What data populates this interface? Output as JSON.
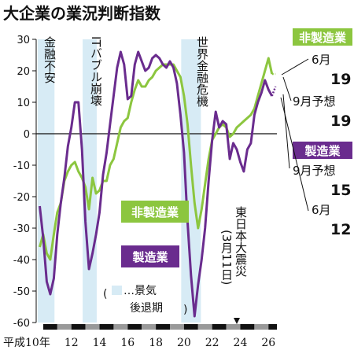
{
  "title": "大企業の業況判断指数",
  "colors": {
    "nonmfg": "#8cc63f",
    "mfg": "#6a2c8e",
    "recession": "#d7ebf5",
    "axis": "#111111",
    "stripe_gray": "#999999"
  },
  "recession_labels": [
    "金融不安",
    "ITバブル崩壊",
    "世界金融危機"
  ],
  "earthquake_label": "東日本大震災",
  "earthquake_date": "(3月11日)",
  "legend_text": "…景気後退期",
  "series_labels": {
    "nonmfg": "非製造業",
    "mfg": "製造業"
  },
  "end_labels": {
    "nonmfg_june": {
      "label": "6月",
      "value": "19"
    },
    "nonmfg_sept": {
      "label": "9月予想",
      "value": "19"
    },
    "mfg_sept": {
      "label": "9月予想",
      "value": "15"
    },
    "mfg_june": {
      "label": "6月",
      "value": "12"
    }
  },
  "chart_data": {
    "type": "line",
    "title": "大企業の業況判断指数",
    "ylim": [
      -60,
      30
    ],
    "yticks": [
      30,
      20,
      10,
      0,
      -10,
      -20,
      -30,
      -40,
      -50,
      -60
    ],
    "xlim": [
      1997.5,
      2014.6
    ],
    "x_ticks": [
      {
        "x": 1998,
        "label": "平成10年"
      },
      {
        "x": 2000,
        "label": "12"
      },
      {
        "x": 2002,
        "label": "14"
      },
      {
        "x": 2004,
        "label": "16"
      },
      {
        "x": 2006,
        "label": "18"
      },
      {
        "x": 2008,
        "label": "20"
      },
      {
        "x": 2010,
        "label": "22"
      },
      {
        "x": 2012,
        "label": "24"
      },
      {
        "x": 2014,
        "label": "26"
      }
    ],
    "recessions": [
      [
        1997.6,
        1998.8
      ],
      [
        2000.8,
        2001.8
      ],
      [
        2007.8,
        2009.2
      ]
    ],
    "earthquake_x": 2011.2,
    "series": [
      {
        "name": "非製造業",
        "key": "nonmfg",
        "x": [
          1997.75,
          1998.0,
          1998.25,
          1998.5,
          1998.75,
          1999.0,
          1999.25,
          1999.5,
          1999.75,
          2000.0,
          2000.25,
          2000.5,
          2000.75,
          2001.0,
          2001.25,
          2001.5,
          2001.75,
          2002.0,
          2002.25,
          2002.5,
          2002.75,
          2003.0,
          2003.25,
          2003.5,
          2003.75,
          2004.0,
          2004.25,
          2004.5,
          2004.75,
          2005.0,
          2005.25,
          2005.5,
          2005.75,
          2006.0,
          2006.25,
          2006.5,
          2006.75,
          2007.0,
          2007.25,
          2007.5,
          2007.75,
          2008.0,
          2008.25,
          2008.5,
          2008.75,
          2009.0,
          2009.25,
          2009.5,
          2009.75,
          2010.0,
          2010.25,
          2010.5,
          2010.75,
          2011.0,
          2011.25,
          2011.5,
          2011.75,
          2012.0,
          2012.25,
          2012.5,
          2012.75,
          2013.0,
          2013.25,
          2013.5,
          2013.75,
          2014.0,
          2014.25
        ],
        "values": [
          -36,
          -32,
          -38,
          -40,
          -32,
          -25,
          -22,
          -15,
          -12,
          -10,
          -9,
          -12,
          -14,
          -17,
          -24,
          -14,
          -19,
          -18,
          -15,
          -15,
          -10,
          -8,
          -3,
          2,
          4,
          5,
          10,
          14,
          17,
          15,
          15,
          17,
          18,
          20,
          21,
          22,
          22,
          22,
          22,
          20,
          18,
          12,
          3,
          -10,
          -22,
          -30,
          -24,
          -16,
          -8,
          -2,
          0,
          2,
          3,
          2,
          -1,
          0,
          2,
          3,
          4,
          5,
          6,
          8,
          12,
          16,
          20,
          24,
          19
        ]
      },
      {
        "name": "製造業",
        "key": "mfg",
        "x": [
          1997.75,
          1998.0,
          1998.25,
          1998.5,
          1998.75,
          1999.0,
          1999.25,
          1999.5,
          1999.75,
          2000.0,
          2000.25,
          2000.5,
          2000.75,
          2001.0,
          2001.25,
          2001.5,
          2001.75,
          2002.0,
          2002.25,
          2002.5,
          2002.75,
          2003.0,
          2003.25,
          2003.5,
          2003.75,
          2004.0,
          2004.25,
          2004.5,
          2004.75,
          2005.0,
          2005.25,
          2005.5,
          2005.75,
          2006.0,
          2006.25,
          2006.5,
          2006.75,
          2007.0,
          2007.25,
          2007.5,
          2007.75,
          2008.0,
          2008.25,
          2008.5,
          2008.75,
          2009.0,
          2009.25,
          2009.5,
          2009.75,
          2010.0,
          2010.25,
          2010.5,
          2010.75,
          2011.0,
          2011.25,
          2011.5,
          2011.75,
          2012.0,
          2012.25,
          2012.5,
          2012.75,
          2013.0,
          2013.25,
          2013.5,
          2013.75,
          2014.0,
          2014.25
        ],
        "values": [
          -23,
          -33,
          -47,
          -51,
          -46,
          -32,
          -22,
          -14,
          -4,
          2,
          10,
          10,
          -5,
          -28,
          -43,
          -38,
          -32,
          -25,
          -13,
          -6,
          3,
          12,
          21,
          26,
          22,
          11,
          12,
          22,
          26,
          23,
          20,
          21,
          24,
          25,
          24,
          22,
          21,
          23,
          21,
          16,
          6,
          -6,
          -28,
          -45,
          -58,
          -48,
          -40,
          -30,
          -15,
          -2,
          7,
          2,
          4,
          3,
          -8,
          -3,
          -5,
          -9,
          -12,
          -5,
          -3,
          6,
          10,
          13,
          17,
          14,
          12
        ]
      }
    ],
    "projection_values": {
      "nonmfg": 19,
      "mfg": 15
    }
  }
}
